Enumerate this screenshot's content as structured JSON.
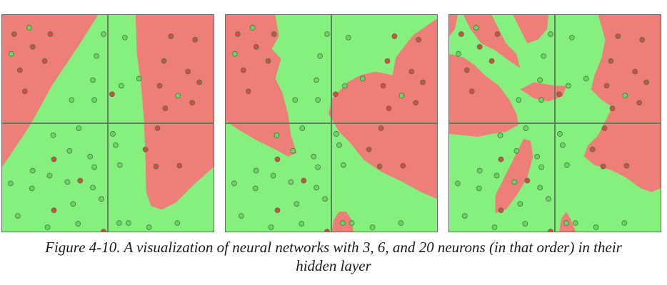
{
  "figure": {
    "caption_line1": "Figure 4-10. A visualization of neural networks with 3, 6, and 20 neurons (in that order) in their",
    "caption_line2": "hidden layer"
  },
  "colors": {
    "red_region": "#ee7e78",
    "green_region": "#86f07f",
    "red_point": "#d84a47",
    "green_point": "#6fd266",
    "axis_line": "#5f7f5f",
    "border": "#6b6b6b"
  },
  "panels": [
    {
      "hidden_neurons": 3
    },
    {
      "hidden_neurons": 6
    },
    {
      "hidden_neurons": 20
    }
  ]
}
